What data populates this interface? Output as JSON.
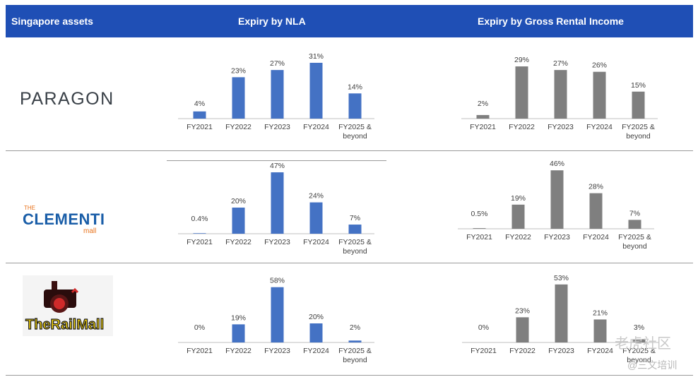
{
  "header": {
    "col1": "Singapore assets",
    "col2": "Expiry by NLA",
    "col3": "Expiry by Gross Rental Income"
  },
  "assets": [
    {
      "name": "PARAGON"
    },
    {
      "name_top": "THE",
      "name_main": "CLEMENTI",
      "name_bottom": "mall"
    },
    {
      "name": "TheRailMall"
    }
  ],
  "colors": {
    "nla": "#4472c4",
    "gri": "#7f7f7f",
    "header": "#1f4fb5"
  },
  "watermark": {
    "line1": "老虎社区",
    "line2": "@三文培训"
  },
  "chart_data": [
    {
      "type": "bar",
      "asset": "Paragon",
      "metric": "Expiry by NLA",
      "categories": [
        "FY2021",
        "FY2022",
        "FY2023",
        "FY2024",
        "FY2025 & beyond"
      ],
      "values": [
        4,
        23,
        27,
        31,
        14
      ],
      "labels": [
        "4%",
        "23%",
        "27%",
        "31%",
        "14%"
      ],
      "color": "#4472c4"
    },
    {
      "type": "bar",
      "asset": "Paragon",
      "metric": "Expiry by Gross Rental Income",
      "categories": [
        "FY2021",
        "FY2022",
        "FY2023",
        "FY2024",
        "FY2025 & beyond"
      ],
      "values": [
        2,
        29,
        27,
        26,
        15
      ],
      "labels": [
        "2%",
        "29%",
        "27%",
        "26%",
        "15%"
      ],
      "color": "#7f7f7f"
    },
    {
      "type": "bar",
      "asset": "The Clementi Mall",
      "metric": "Expiry by NLA",
      "categories": [
        "FY2021",
        "FY2022",
        "FY2023",
        "FY2024",
        "FY2025 & beyond"
      ],
      "values": [
        0.4,
        20,
        47,
        24,
        7
      ],
      "labels": [
        "0.4%",
        "20%",
        "47%",
        "24%",
        "7%"
      ],
      "color": "#4472c4"
    },
    {
      "type": "bar",
      "asset": "The Clementi Mall",
      "metric": "Expiry by Gross Rental Income",
      "categories": [
        "FY2021",
        "FY2022",
        "FY2023",
        "FY2024",
        "FY2025 & beyond"
      ],
      "values": [
        0.5,
        19,
        46,
        28,
        7
      ],
      "labels": [
        "0.5%",
        "19%",
        "46%",
        "28%",
        "7%"
      ],
      "color": "#7f7f7f"
    },
    {
      "type": "bar",
      "asset": "The Rail Mall",
      "metric": "Expiry by NLA",
      "categories": [
        "FY2021",
        "FY2022",
        "FY2023",
        "FY2024",
        "FY2025 & beyond"
      ],
      "values": [
        0,
        19,
        58,
        20,
        2
      ],
      "labels": [
        "0%",
        "19%",
        "58%",
        "20%",
        "2%"
      ],
      "color": "#4472c4"
    },
    {
      "type": "bar",
      "asset": "The Rail Mall",
      "metric": "Expiry by Gross Rental Income",
      "categories": [
        "FY2021",
        "FY2022",
        "FY2023",
        "FY2024",
        "FY2025 & beyond"
      ],
      "values": [
        0,
        23,
        53,
        21,
        3
      ],
      "labels": [
        "0%",
        "23%",
        "53%",
        "21%",
        "3%"
      ],
      "color": "#7f7f7f"
    }
  ]
}
